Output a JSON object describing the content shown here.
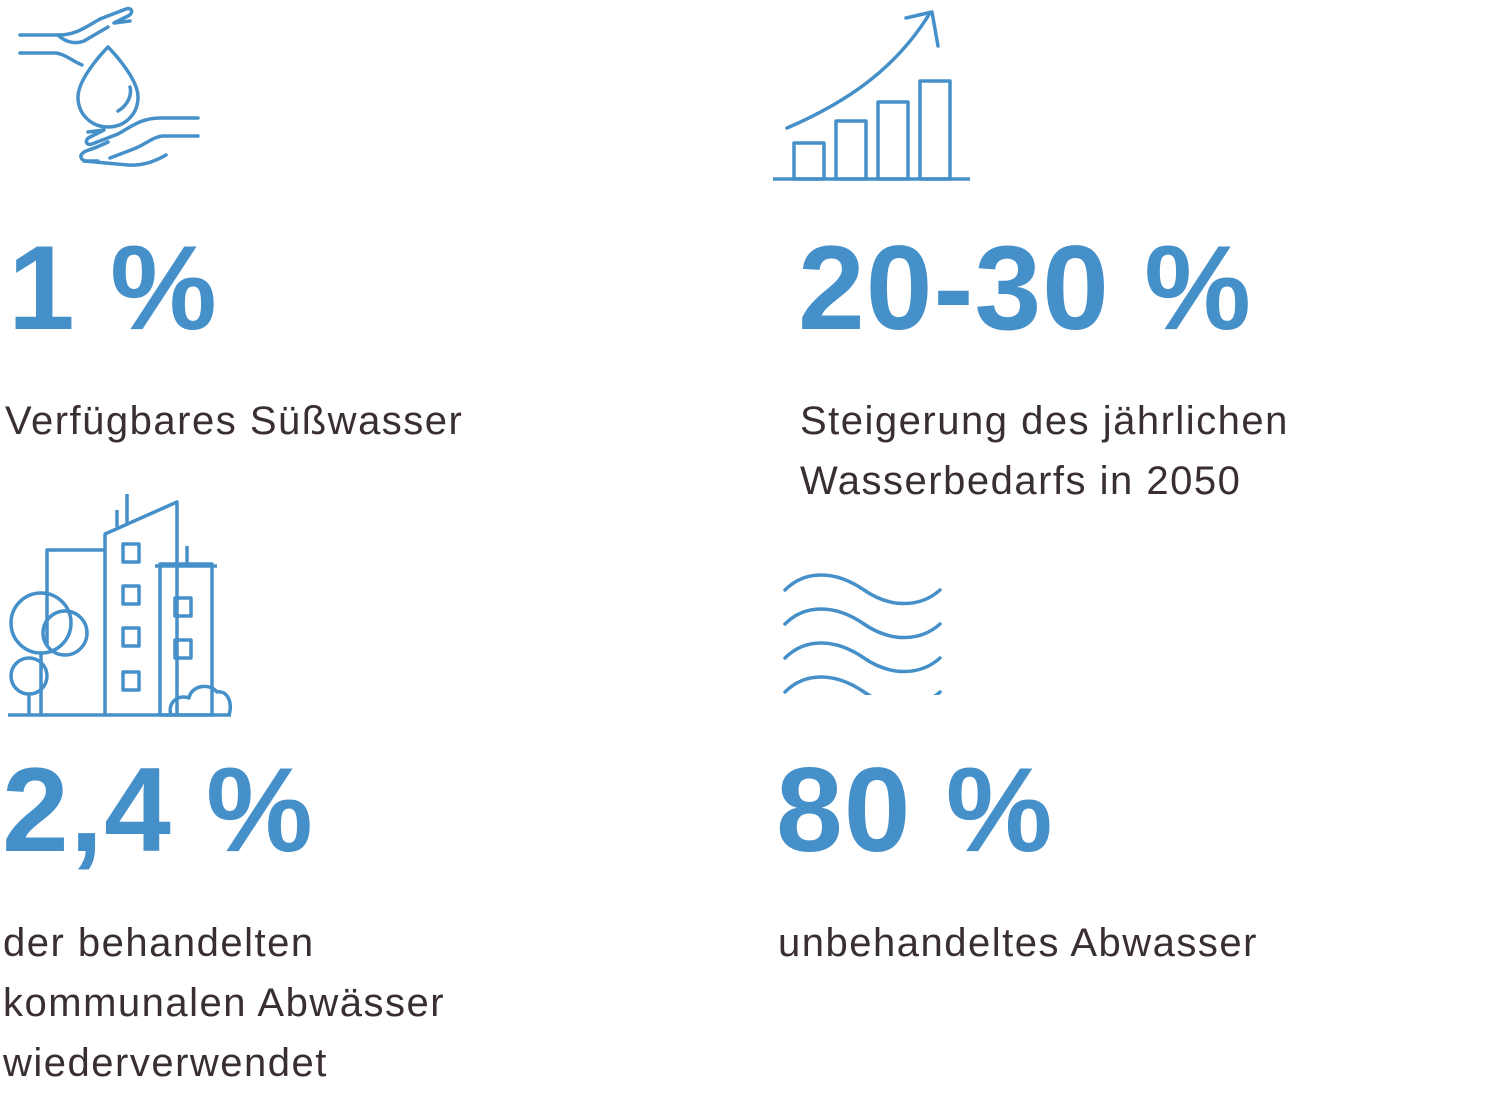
{
  "accent_color": "#4690ca",
  "text_color": "#3a2f30",
  "stats": [
    {
      "icon": "hands-water-drop-icon",
      "value": "1 %",
      "label_lines": [
        "Verfügbares Süßwasser"
      ]
    },
    {
      "icon": "rising-bar-chart-icon",
      "value": "20-30 %",
      "label_lines": [
        "Steigerung des jährlichen",
        "Wasserbedarfs in 2050"
      ]
    },
    {
      "icon": "city-buildings-trees-icon",
      "value": "2,4 %",
      "label_lines": [
        "der behandelten",
        "kommunalen Abwässer",
        "wiederverwendet"
      ]
    },
    {
      "icon": "water-waves-icon",
      "value": "80 %",
      "label_lines": [
        "unbehandeltes Abwasser"
      ]
    }
  ]
}
